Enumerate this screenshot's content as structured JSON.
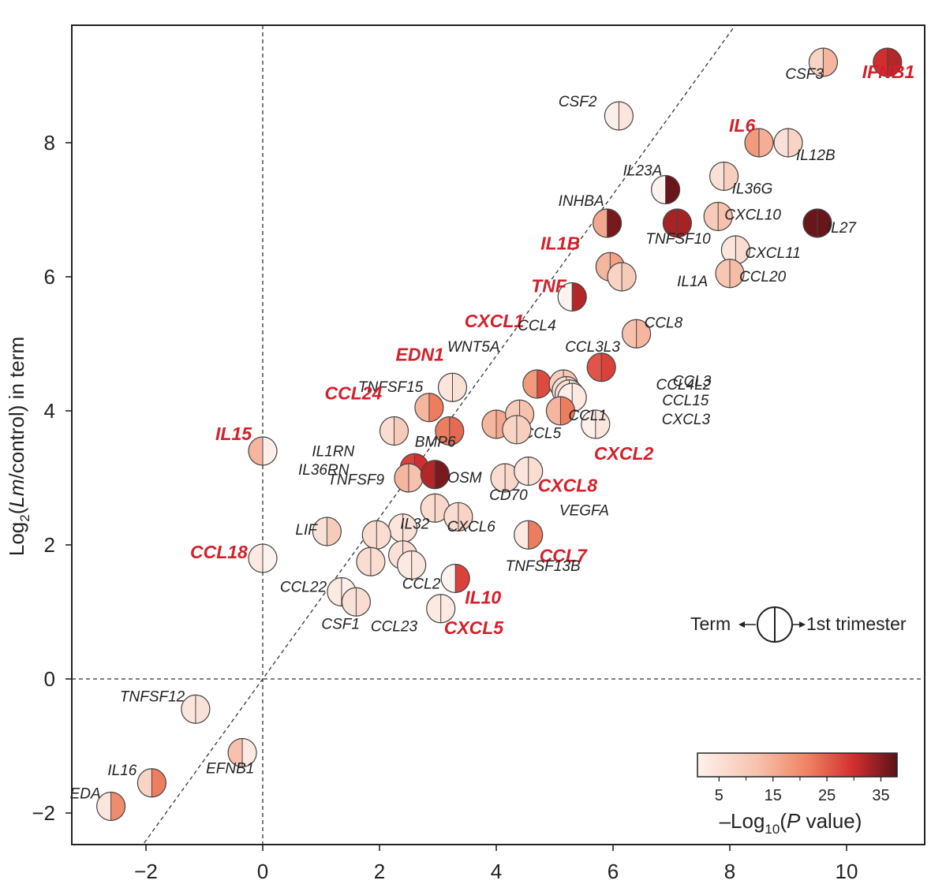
{
  "chart_data": {
    "type": "scatter",
    "title": "",
    "xlabel": "",
    "ylabel": "in term",
    "ylabel_prefix": "Log",
    "ylabel_sub": "2",
    "ylabel_inner": "Lm",
    "ylabel_after": "/control)",
    "xlim": [
      -3.2,
      11.3
    ],
    "ylim": [
      -2.45,
      9.8
    ],
    "x_ticks": [
      -2,
      0,
      2,
      4,
      6,
      8,
      10
    ],
    "y_ticks": [
      -2,
      0,
      2,
      4,
      6,
      8
    ],
    "x_tick_labels": [
      "−2",
      "0",
      "2",
      "4",
      "6",
      "8",
      "10"
    ],
    "y_tick_labels": [
      "−2",
      "0",
      "2",
      "4",
      "6",
      "8"
    ],
    "reference_lines": {
      "x0": true,
      "y0": true,
      "diagonal_y_equals_x": true
    },
    "legend": {
      "left_label": "Term",
      "right_label": "1st trimester",
      "placement": "right-middle"
    },
    "colorbar": {
      "ticks": [
        "5",
        "15",
        "25",
        "35"
      ],
      "title_prefix": "–Log",
      "title_sub": "10",
      "title_italic": "P",
      "title_suffix": " value)",
      "min_color": "#fdf2ee",
      "mid_color": "#f08a6a",
      "high_color": "#d32f2f",
      "max_color": "#5a1218",
      "placement": "bottom-right"
    },
    "highlight_color": "#d3202a",
    "points": [
      {
        "gene": "IFNB1",
        "x": 10.7,
        "y": 9.2,
        "left": 30,
        "right": 32,
        "hl": true
      },
      {
        "gene": "CSF3",
        "x": 9.6,
        "y": 9.2,
        "left": 8,
        "right": 14,
        "hl": false
      },
      {
        "gene": "CSF2",
        "x": 6.1,
        "y": 8.4,
        "left": 2,
        "right": 4,
        "hl": false
      },
      {
        "gene": "IL6",
        "x": 8.5,
        "y": 8.0,
        "left": 18,
        "right": 15,
        "hl": true
      },
      {
        "gene": "IL12B",
        "x": 9.0,
        "y": 8.0,
        "left": 5,
        "right": 8,
        "hl": false
      },
      {
        "gene": "IL23A",
        "x": 6.9,
        "y": 7.3,
        "left": 1,
        "right": 37,
        "hl": false
      },
      {
        "gene": "IL36G",
        "x": 7.9,
        "y": 7.5,
        "left": 5,
        "right": 9,
        "hl": false
      },
      {
        "gene": "INHBA",
        "x": 5.9,
        "y": 6.8,
        "left": 16,
        "right": 36,
        "hl": false
      },
      {
        "gene": "TNFSF10",
        "x": 7.1,
        "y": 6.8,
        "left": 33,
        "right": 33,
        "hl": false
      },
      {
        "gene": "CXCL10",
        "x": 7.8,
        "y": 6.9,
        "left": 10,
        "right": 12,
        "hl": false
      },
      {
        "gene": "IL27",
        "x": 9.5,
        "y": 6.8,
        "left": 37,
        "right": 37,
        "hl": false
      },
      {
        "gene": "CXCL11",
        "x": 8.1,
        "y": 6.4,
        "left": 4,
        "right": 6,
        "hl": false
      },
      {
        "gene": "IL1B",
        "x": 5.95,
        "y": 6.15,
        "left": 14,
        "right": 17,
        "hl": true
      },
      {
        "gene": "IL1A",
        "x": 6.15,
        "y": 6.0,
        "left": 8,
        "right": 10,
        "hl": false
      },
      {
        "gene": "CCL20",
        "x": 8.0,
        "y": 6.05,
        "left": 11,
        "right": 13,
        "hl": false
      },
      {
        "gene": "TNF",
        "x": 5.3,
        "y": 5.7,
        "left": 1,
        "right": 32,
        "hl": true
      },
      {
        "gene": "CCL8",
        "x": 6.4,
        "y": 5.15,
        "left": 12,
        "right": 14,
        "hl": false
      },
      {
        "gene": "CCL3L3",
        "x": 5.8,
        "y": 4.65,
        "left": 26,
        "right": 28,
        "hl": false
      },
      {
        "gene": "CXCL1",
        "x": 4.7,
        "y": 4.4,
        "left": 18,
        "right": 27,
        "hl": true
      },
      {
        "gene": "CCL4",
        "x": 5.15,
        "y": 4.4,
        "left": 9,
        "right": 11,
        "hl": false
      },
      {
        "gene": "CCL3",
        "x": 5.2,
        "y": 4.3,
        "left": 6,
        "right": 8,
        "hl": false
      },
      {
        "gene": "CCL4L2",
        "x": 5.25,
        "y": 4.25,
        "left": 5,
        "right": 6,
        "hl": false
      },
      {
        "gene": "CCL15",
        "x": 5.3,
        "y": 4.2,
        "left": 2,
        "right": 3,
        "hl": false
      },
      {
        "gene": "EDN1",
        "x": 3.25,
        "y": 4.35,
        "left": 4,
        "right": 5,
        "hl": true
      },
      {
        "gene": "TNFSF15",
        "x": 2.85,
        "y": 4.05,
        "left": 14,
        "right": 22,
        "hl": false
      },
      {
        "gene": "CXCL3",
        "x": 5.7,
        "y": 3.8,
        "left": 2,
        "right": 4,
        "hl": false
      },
      {
        "gene": "CCL1",
        "x": 5.1,
        "y": 4.0,
        "left": 14,
        "right": 22,
        "hl": false
      },
      {
        "gene": "WNT5A",
        "x": 4.0,
        "y": 3.8,
        "left": 14,
        "right": 16,
        "hl": false
      },
      {
        "gene": "CCL5",
        "x": 4.4,
        "y": 3.95,
        "left": 10,
        "right": 12,
        "hl": false
      },
      {
        "gene": "CXCL2",
        "x": 4.35,
        "y": 3.72,
        "left": 8,
        "right": 9,
        "hl": true
      },
      {
        "gene": "BMP6",
        "x": 3.2,
        "y": 3.7,
        "left": 22,
        "right": 24,
        "hl": false
      },
      {
        "gene": "CCL24",
        "x": 2.25,
        "y": 3.7,
        "left": 6,
        "right": 10,
        "hl": true
      },
      {
        "gene": "IL15",
        "x": 0.0,
        "y": 3.4,
        "left": 14,
        "right": 2,
        "hl": true
      },
      {
        "gene": "IL1RN",
        "x": 2.6,
        "y": 3.15,
        "left": 28,
        "right": 30,
        "hl": false
      },
      {
        "gene": "IL36RN",
        "x": 2.5,
        "y": 3.0,
        "left": 14,
        "right": 12,
        "hl": false
      },
      {
        "gene": "OSM",
        "x": 2.95,
        "y": 3.05,
        "left": 32,
        "right": 36,
        "hl": false
      },
      {
        "gene": "CD70",
        "x": 4.15,
        "y": 3.0,
        "left": 6,
        "right": 7,
        "hl": false
      },
      {
        "gene": "CXCL8",
        "x": 4.55,
        "y": 3.1,
        "left": 4,
        "right": 6,
        "hl": true
      },
      {
        "gene": "TNFSF9",
        "x": 2.95,
        "y": 2.55,
        "left": 6,
        "right": 7,
        "hl": false
      },
      {
        "gene": "VEGFA",
        "x": 3.35,
        "y": 2.42,
        "left": 6,
        "right": 8,
        "hl": false
      },
      {
        "gene": "CXCL6",
        "x": 2.4,
        "y": 2.25,
        "left": 4,
        "right": 5,
        "hl": false
      },
      {
        "gene": "LIF",
        "x": 1.1,
        "y": 2.2,
        "left": 5,
        "right": 10,
        "hl": false
      },
      {
        "gene": "IL32",
        "x": 1.95,
        "y": 2.15,
        "left": 6,
        "right": 6,
        "hl": false
      },
      {
        "gene": "CCL7",
        "x": 4.55,
        "y": 2.15,
        "left": 3,
        "right": 22,
        "hl": true
      },
      {
        "gene": "TNFSF13B",
        "x": 2.4,
        "y": 1.85,
        "left": 5,
        "right": 6,
        "hl": false
      },
      {
        "gene": "CCL18",
        "x": 0.0,
        "y": 1.8,
        "left": 3,
        "right": 1,
        "hl": true
      },
      {
        "gene": "CCL2",
        "x": 2.55,
        "y": 1.7,
        "left": 3,
        "right": 4,
        "hl": false
      },
      {
        "gene": "CCL23",
        "x": 1.85,
        "y": 1.75,
        "left": 6,
        "right": 6,
        "hl": false
      },
      {
        "gene": "IL10",
        "x": 3.3,
        "y": 1.5,
        "left": 1,
        "right": 28,
        "hl": true
      },
      {
        "gene": "CCL22",
        "x": 1.35,
        "y": 1.3,
        "left": 3,
        "right": 2,
        "hl": false
      },
      {
        "gene": "CSF1",
        "x": 1.6,
        "y": 1.15,
        "left": 5,
        "right": 6,
        "hl": false
      },
      {
        "gene": "CXCL5",
        "x": 3.05,
        "y": 1.05,
        "left": 3,
        "right": 3,
        "hl": true
      },
      {
        "gene": "TNFSF12",
        "x": -1.15,
        "y": -0.45,
        "left": 4,
        "right": 5,
        "hl": false
      },
      {
        "gene": "EFNB1",
        "x": -0.35,
        "y": -1.1,
        "left": 12,
        "right": 3,
        "hl": false
      },
      {
        "gene": "IL16",
        "x": -1.9,
        "y": -1.55,
        "left": 8,
        "right": 22,
        "hl": false
      },
      {
        "gene": "EDA",
        "x": -2.6,
        "y": -1.9,
        "left": 4,
        "right": 20,
        "hl": false
      }
    ]
  }
}
